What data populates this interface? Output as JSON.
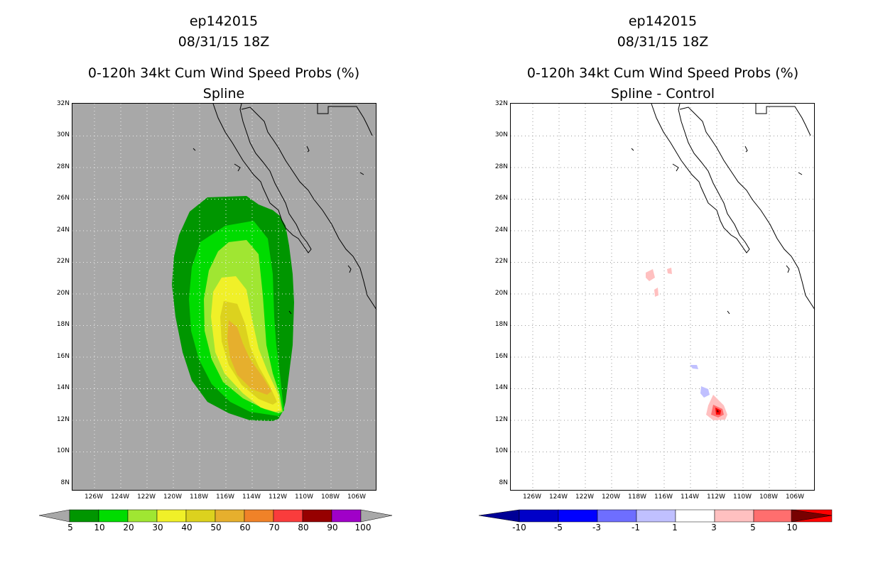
{
  "left_panel": {
    "storm_id": "ep142015",
    "datetime": "08/31/15 18Z",
    "product": "0-120h 34kt Cum Wind Speed Probs (%)",
    "subtitle": "Spline",
    "background_color": "#a8a8a8"
  },
  "right_panel": {
    "storm_id": "ep142015",
    "datetime": "08/31/15 18Z",
    "product": "0-120h 34kt Cum Wind Speed Probs (%)",
    "subtitle": "Spline - Control",
    "background_color": "#ffffff"
  },
  "latitude_labels": [
    "32N",
    "30N",
    "28N",
    "26N",
    "24N",
    "22N",
    "20N",
    "18N",
    "16N",
    "14N",
    "12N",
    "10N",
    "8N"
  ],
  "longitude_labels": [
    "126W",
    "124W",
    "122W",
    "120W",
    "118W",
    "116W",
    "114W",
    "112W",
    "110W",
    "108W",
    "106W"
  ],
  "left_colorbar": {
    "labels": [
      "5",
      "10",
      "20",
      "30",
      "40",
      "50",
      "60",
      "70",
      "80",
      "90",
      "100"
    ],
    "colors": [
      "#009600",
      "#00dc00",
      "#a0e632",
      "#f0f028",
      "#dcd21e",
      "#e6af2d",
      "#f08228",
      "#fa3c3c",
      "#960000",
      "#a000c8"
    ],
    "end_arrow_color": "#a8a8a8"
  },
  "right_colorbar": {
    "labels": [
      "-10",
      "-5",
      "-3",
      "-1",
      "1",
      "3",
      "5",
      "10"
    ],
    "colors": [
      "#0000c8",
      "#0000ff",
      "#6e6eff",
      "#c0c0ff",
      "#ffffff",
      "#ffc0c0",
      "#ff6e6e",
      "#ff0000"
    ],
    "low_arrow_color": "#000096",
    "high_arrow_color": "#780000"
  }
}
